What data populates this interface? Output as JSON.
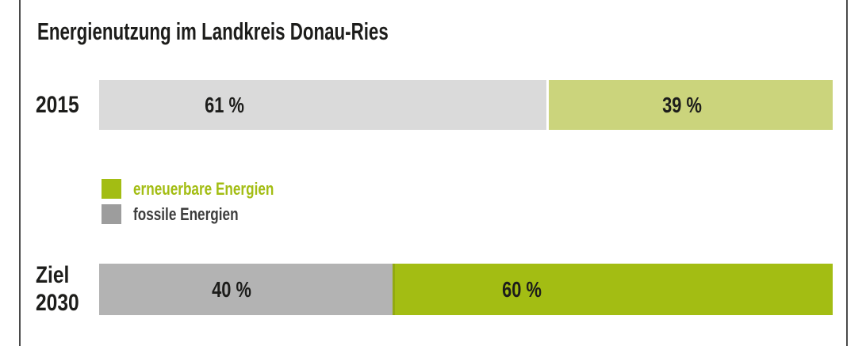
{
  "title": "Energienutzung im Landkreis Donau-Ries",
  "colors": {
    "text_dark": "#1d1d1b",
    "frame_line": "#4a4a4a",
    "renewable_green": "#a3bd13",
    "renewable_green_muted": "#cbd47c",
    "fossil_gray_dark": "#b3b3b3",
    "fossil_gray_light": "#dadada",
    "legend_gray": "#9d9d9d",
    "legend_fossil_text": "#3d3d3d"
  },
  "legend": {
    "items": [
      {
        "label": "erneuerbare Energien",
        "swatch": "#a3bd13",
        "text_color": "#a3bd13"
      },
      {
        "label": "fossile Energien",
        "swatch": "#9d9d9d",
        "text_color": "#3d3d3d"
      }
    ]
  },
  "rows": [
    {
      "label_lines": [
        "2015"
      ],
      "segments": [
        {
          "name": "fossile Energien",
          "value": 61,
          "value_label": "61 %",
          "color": "#dadada",
          "label_pos": 28
        },
        {
          "name": "erneuerbare Energien",
          "value": 39,
          "value_label": "39 %",
          "color": "#cbd47c",
          "label_pos": 47
        }
      ]
    },
    {
      "label_lines": [
        "Ziel",
        "2030"
      ],
      "segments": [
        {
          "name": "fossile Energien",
          "value": 40,
          "value_label": "40 %",
          "color": "#b3b3b3",
          "label_pos": 45
        },
        {
          "name": "erneuerbare Energien",
          "value": 60,
          "value_label": "60 %",
          "color": "#a3bd13",
          "label_pos": 29
        }
      ]
    }
  ],
  "chart_data": {
    "type": "bar",
    "orientation": "horizontal",
    "stacked": true,
    "title": "Energienutzung im Landkreis Donau-Ries",
    "categories": [
      "2015",
      "Ziel 2030"
    ],
    "series": [
      {
        "name": "fossile Energien",
        "values": [
          61,
          40
        ]
      },
      {
        "name": "erneuerbare Energien",
        "values": [
          39,
          60
        ]
      }
    ],
    "unit": "%",
    "value_labels": [
      [
        "61 %",
        "39 %"
      ],
      [
        "40 %",
        "60 %"
      ]
    ],
    "xlim": [
      0,
      100
    ],
    "grid": false,
    "legend_position": "between-rows",
    "notes": "2015 row uses muted colors (light gray / light olive green); Ziel 2030 row uses saturated colors (mid gray / vivid yellow-green)"
  }
}
